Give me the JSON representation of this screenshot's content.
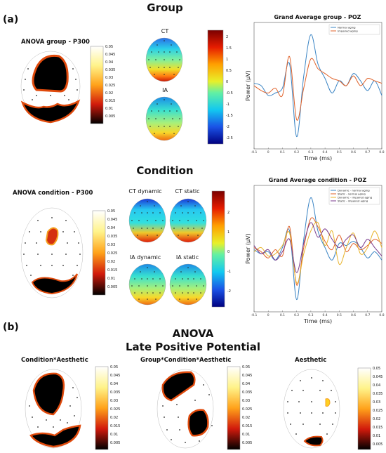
{
  "headings": {
    "panel_a": "(a)",
    "panel_b": "(b)",
    "group": "Group",
    "condition": "Condition",
    "anova": "ANOVA",
    "lpp": "Late Positive Potential"
  },
  "maps": {
    "anova_group": "ANOVA group - P300",
    "ct": "CT",
    "ia": "IA",
    "anova_condition": "ANOVA condition - P300",
    "ct_dynamic": "CT dynamic",
    "ct_static": "CT static",
    "ia_dynamic": "IA dynamic",
    "ia_static": "IA static",
    "cond_aesthetic": "Condition*Aesthetic",
    "group_cond_aesthetic": "Group*Condition*Aesthetic",
    "aesthetic": "Aesthetic"
  },
  "colorbars": {
    "p_ticks_a": [
      "0.05",
      "0.045",
      "0.04",
      "0.035",
      "0.03",
      "0.025",
      "0.02",
      "0.015",
      "0.01",
      "0.005"
    ],
    "amp_ticks_a": [
      "2",
      "1.5",
      "1",
      "0.5",
      "0",
      "-0.5",
      "-1",
      "-1.5",
      "-2",
      "-2.5"
    ],
    "p_ticks_c": [
      "0.05",
      "0.045",
      "0.04",
      "0.035",
      "0.03",
      "0.025",
      "0.02",
      "0.015",
      "0.01",
      "0.005"
    ],
    "amp_ticks_c": [
      "2",
      "1",
      "0",
      "-1",
      "-2"
    ],
    "p_ticks_b1": [
      "0.05",
      "0.045",
      "0.04",
      "0.035",
      "0.03",
      "0.025",
      "0.02",
      "0.015",
      "0.01",
      "0.005"
    ],
    "p_ticks_b2": [
      "0.05",
      "0.045",
      "0.04",
      "0.035",
      "0.03",
      "0.025",
      "0.02",
      "0.015",
      "0.01",
      "0.005"
    ],
    "p_ticks_b3": [
      "0.05",
      "0.045",
      "0.04",
      "0.035",
      "0.03",
      "0.025",
      "0.02",
      "0.015",
      "0.01",
      "0.005"
    ]
  },
  "chart_data": [
    {
      "type": "line",
      "title": "Grand Average group - POZ",
      "xlabel": "Time (ms)",
      "ylabel": "Power (µV)",
      "xlim": [
        -0.1,
        0.8
      ],
      "x_ticks": [
        "-0.1",
        "0",
        "0.1",
        "0.2",
        "0.3",
        "0.4",
        "0.5",
        "0.6",
        "0.7",
        "0.8"
      ],
      "legend_position": "top-right",
      "x": [
        -0.1,
        -0.05,
        0,
        0.05,
        0.1,
        0.15,
        0.2,
        0.25,
        0.3,
        0.35,
        0.4,
        0.45,
        0.5,
        0.55,
        0.6,
        0.65,
        0.7,
        0.75,
        0.8
      ],
      "series": [
        {
          "name": "Normal aging",
          "color": "#3a84c4",
          "values": [
            0.2,
            0.1,
            -0.3,
            -0.2,
            0.0,
            1.0,
            -2.0,
            0.5,
            2.2,
            1.0,
            0.4,
            -0.2,
            0.3,
            0.1,
            0.6,
            0.3,
            -0.1,
            0.3,
            -0.3
          ]
        },
        {
          "name": "Impaired aging",
          "color": "#e0622a",
          "values": [
            0.1,
            -0.1,
            -0.2,
            0.0,
            -0.3,
            1.3,
            -1.3,
            0.0,
            1.2,
            0.8,
            0.6,
            0.4,
            0.3,
            0.1,
            0.5,
            0.1,
            0.4,
            0.3,
            0.2
          ]
        }
      ]
    },
    {
      "type": "line",
      "title": "Grand Average condition - POZ",
      "xlabel": "Time (ms)",
      "ylabel": "Power (µV)",
      "xlim": [
        -0.1,
        0.8
      ],
      "x_ticks": [
        "-0.1",
        "0",
        "0.1",
        "0.2",
        "0.3",
        "0.4",
        "0.5",
        "0.6",
        "0.7",
        "0.8"
      ],
      "legend_position": "top-right",
      "x": [
        -0.1,
        -0.05,
        0,
        0.05,
        0.1,
        0.15,
        0.2,
        0.25,
        0.3,
        0.35,
        0.4,
        0.45,
        0.5,
        0.55,
        0.6,
        0.65,
        0.7,
        0.75,
        0.8
      ],
      "series": [
        {
          "name": "Dynamic - normal aging",
          "color": "#3a84c4",
          "values": [
            0.1,
            -0.1,
            0.0,
            -0.4,
            0.2,
            1.0,
            -2.3,
            0.6,
            2.6,
            1.0,
            0.2,
            -0.4,
            0.4,
            0.3,
            0.5,
            0.2,
            -0.3,
            0.0,
            -0.4
          ]
        },
        {
          "name": "Static - normal aging",
          "color": "#e0622a",
          "values": [
            0.2,
            0.0,
            -0.3,
            0.1,
            -0.2,
            1.2,
            -1.6,
            0.2,
            1.6,
            1.2,
            0.5,
            0.1,
            0.8,
            0.0,
            0.4,
            0.1,
            0.3,
            0.6,
            0.4
          ]
        },
        {
          "name": "Dynamic - impaired aging",
          "color": "#e8b32a",
          "values": [
            0.0,
            0.2,
            -0.2,
            -0.1,
            0.3,
            0.9,
            -1.5,
            -0.1,
            1.0,
            1.4,
            0.3,
            1.0,
            -0.6,
            0.2,
            0.9,
            -0.1,
            0.2,
            1.0,
            0.2
          ]
        },
        {
          "name": "Static - impaired aging",
          "color": "#7a3a8c",
          "values": [
            0.3,
            -0.1,
            0.1,
            -0.4,
            0.0,
            0.6,
            -1.0,
            0.4,
            1.4,
            0.7,
            1.1,
            0.6,
            0.2,
            0.6,
            0.8,
            0.2,
            0.6,
            0.2,
            -0.2
          ]
        }
      ]
    }
  ]
}
